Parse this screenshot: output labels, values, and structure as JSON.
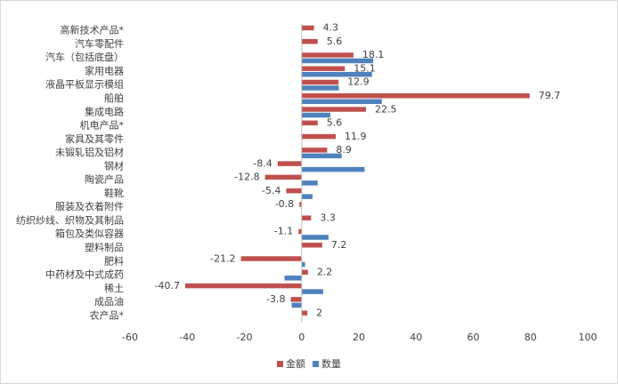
{
  "chart_data": {
    "type": "bar",
    "orientation": "horizontal",
    "categories": [
      "高新技术产品*",
      "汽车零配件",
      "汽车（包括底盘）",
      "家用电器",
      "液晶平板显示模组",
      "船舶",
      "集成电路",
      "机电产品*",
      "家具及其零件",
      "未锻轧铝及铝材",
      "钢材",
      "陶瓷产品",
      "鞋靴",
      "服装及衣着附件",
      "纺织纱线、织物及其制品",
      "箱包及类似容器",
      "塑料制品",
      "肥料",
      "中药材及中式成药",
      "稀土",
      "成品油",
      "农产品*"
    ],
    "series": [
      {
        "name": "金额",
        "color": "#c0504d",
        "values": [
          4.3,
          5.6,
          18.1,
          15.1,
          12.9,
          79.7,
          22.5,
          5.6,
          11.9,
          8.9,
          -8.4,
          -12.8,
          -5.4,
          -0.8,
          3.3,
          -1.1,
          7.2,
          -21.2,
          2.2,
          -40.7,
          -3.8,
          2
        ],
        "show_labels": true
      },
      {
        "name": "数量",
        "color": "#4f81bd",
        "values": [
          0,
          0,
          25,
          24.6,
          13,
          28,
          10,
          0,
          0,
          14,
          22,
          5.6,
          3.8,
          0,
          0,
          9.4,
          0,
          1.2,
          -6,
          7.5,
          -3.5,
          0
        ],
        "show_labels": false
      }
    ],
    "xlim": [
      -60,
      100
    ],
    "xticks": [
      -60,
      -40,
      -20,
      0,
      20,
      40,
      60,
      80,
      100
    ],
    "legend": "bottom",
    "grid": false
  }
}
